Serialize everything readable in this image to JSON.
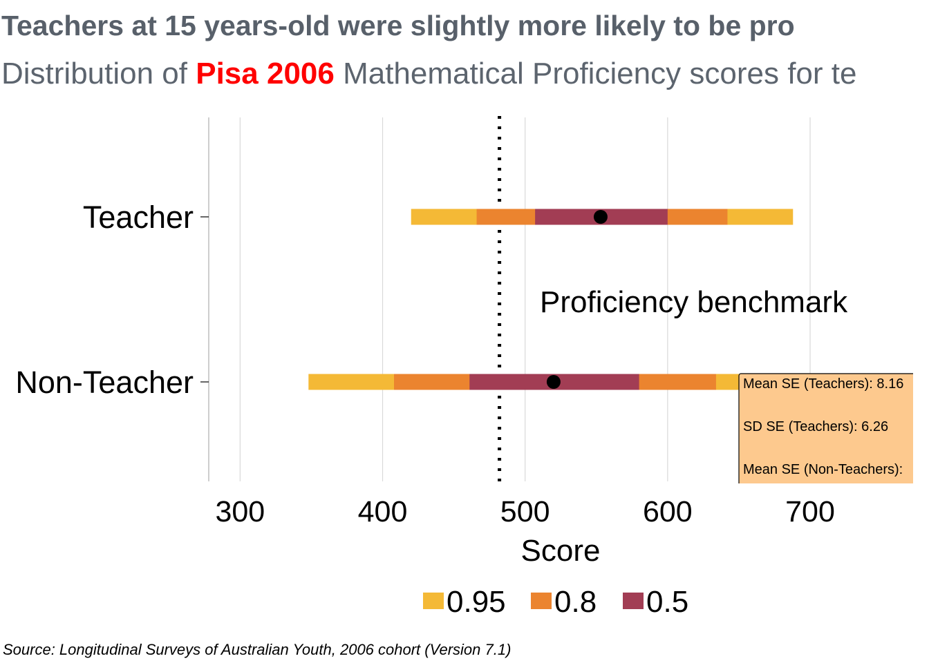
{
  "title": "Teachers at 15 years-old were slightly more likely to be pro",
  "subtitle": {
    "before": "Distribution of ",
    "highlight": "Pisa 2006",
    "after": " Mathematical Proficiency scores for te"
  },
  "source": "Source: Longitudinal Surveys of Australian Youth, 2006 cohort (Version 7.1)",
  "colors": {
    "q95": "#f4b936",
    "q80": "#eb842f",
    "q50": "#a23d54",
    "highlight": "#ff0000",
    "annotation_box": "#fdc98e"
  },
  "chart_data": {
    "type": "interval",
    "xlabel": "Score",
    "xlim": [
      278,
      778
    ],
    "x_ticks": [
      300,
      400,
      500,
      600,
      700
    ],
    "categories": [
      "Teacher",
      "Non-Teacher"
    ],
    "grid": "vertical",
    "legend": {
      "position": "bottom",
      "entries": [
        "0.95",
        "0.8",
        "0.5"
      ]
    },
    "intervals": [
      {
        "category": "Teacher",
        "i95": [
          420,
          688
        ],
        "i80": [
          466,
          642
        ],
        "i50": [
          507,
          600
        ],
        "mean": 553
      },
      {
        "category": "Non-Teacher",
        "i95": [
          348,
          726
        ],
        "i80": [
          408,
          634
        ],
        "i50": [
          461,
          580
        ],
        "mean": 520
      }
    ],
    "benchmark": {
      "value": 482,
      "label": "Proficiency benchmark"
    },
    "annotation_box_lines": [
      "Mean SE (Teachers): 8.16",
      "SD SE (Teachers): 6.26",
      "Mean SE (Non-Teachers):"
    ]
  }
}
